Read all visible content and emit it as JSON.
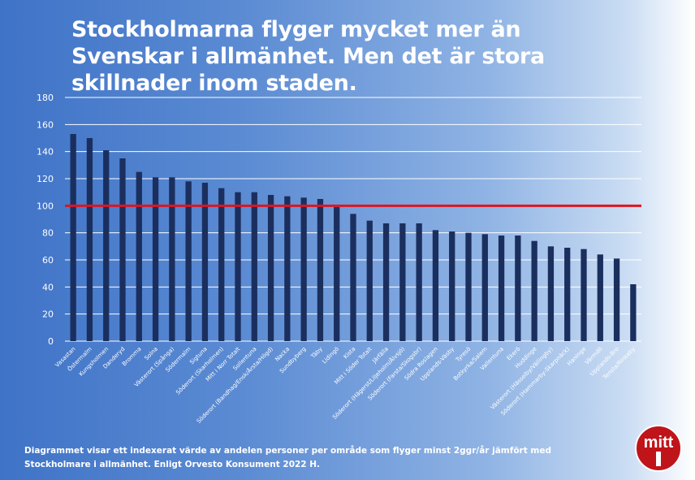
{
  "title": "Stockholmarna flyger mycket mer än Svenskar i allmänhet. Men det är stora skillnader inom staden.",
  "footnote": "Diagrammet visar ett indexerat värde av andelen personer per område som flyger minst 2ggr/år jämfört med Stockholmare i allmänhet. Enligt Orvesto Konsument 2022 H.",
  "logo_text": "mitt i",
  "colors": {
    "bar": "#1b2f5e",
    "reference_line": "#e0141e",
    "gridline": "#ffffff",
    "logo_bg": "#c0141b"
  },
  "chart_data": {
    "type": "bar",
    "ylim": [
      0,
      180
    ],
    "yticks": [
      0,
      20,
      40,
      60,
      80,
      100,
      120,
      140,
      160,
      180
    ],
    "grid": true,
    "reference_line": 100,
    "categories": [
      "Vasastan",
      "Östermalm",
      "Kungsholmen",
      "Danderyd",
      "Bromma",
      "Solna",
      "Västerort (Spånga)",
      "Södermalm",
      "Sigtuna",
      "Söderort (Skarholmen)",
      "Mitt i Norr Totalt",
      "Sollentuna",
      "Söderort (Bandhag/Ensk/Årsta/Högd)",
      "Nacka",
      "Sundbyberg",
      "Täby",
      "Lidingö",
      "Kista",
      "Mitt i Söder Totalt",
      "Järfälla",
      "Söderort (Hägerst/Liljeholm/Älvsjö)",
      "Söderort (Farsta/Skogsbr)",
      "Södra Roslagen",
      "Upplands-Väsby",
      "Tyresö",
      "Botkyrka/Salem",
      "Vallentuna",
      "Ekerö",
      "Huddinge",
      "Västerort (Hässelby/Vällingby)",
      "Söderort (Hammarby-Skarpnäck)",
      "Haninge",
      "Värmdö",
      "Upplands-Bro",
      "Tensta/Rinkeby"
    ],
    "values": [
      153,
      150,
      141,
      135,
      125,
      121,
      121,
      118,
      117,
      113,
      110,
      110,
      108,
      107,
      106,
      105,
      99,
      94,
      89,
      87,
      87,
      87,
      82,
      81,
      80,
      79,
      78,
      78,
      74,
      70,
      69,
      68,
      64,
      61,
      42
    ]
  }
}
